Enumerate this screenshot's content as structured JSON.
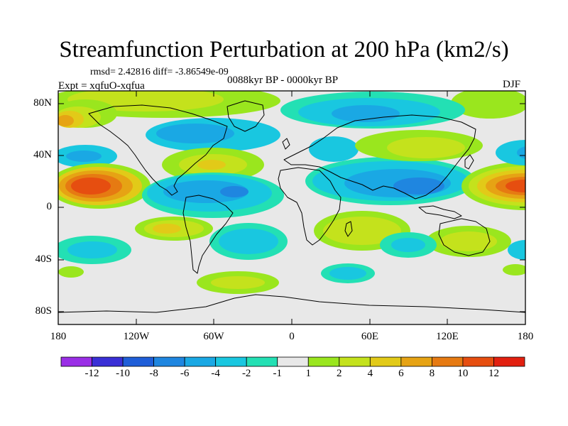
{
  "title": "Streamfunction Perturbation at 200 hPa (km2/s)",
  "stats": "rmsd= 2.42816 diff= -3.86549e-09",
  "experiment": "Expt = xqfuO-xqfua",
  "period": "0088kyr BP - 0000kyr BP",
  "season": "DJF",
  "map": {
    "projection": "cylindrical equidistant",
    "lon_range": [
      -180,
      180
    ],
    "lat_range": [
      -90,
      90
    ],
    "y_ticks": [
      "80N",
      "40N",
      "0",
      "40S",
      "80S"
    ],
    "x_ticks": [
      "180",
      "120W",
      "60W",
      "0",
      "60E",
      "120E",
      "180"
    ]
  },
  "colorbar": {
    "labels": [
      "-12",
      "-10",
      "-8",
      "-6",
      "-4",
      "-2",
      "-1",
      "1",
      "2",
      "4",
      "6",
      "8",
      "10",
      "12"
    ],
    "colors": [
      "#9a2ee6",
      "#3a2fd6",
      "#1f5ed8",
      "#1f86e0",
      "#1aa8e4",
      "#19c7e0",
      "#23e0b4",
      "#e8e8e8",
      "#9ae61e",
      "#c4e21c",
      "#e2ca18",
      "#e6a314",
      "#e67a12",
      "#e64e10",
      "#e22010"
    ]
  }
}
